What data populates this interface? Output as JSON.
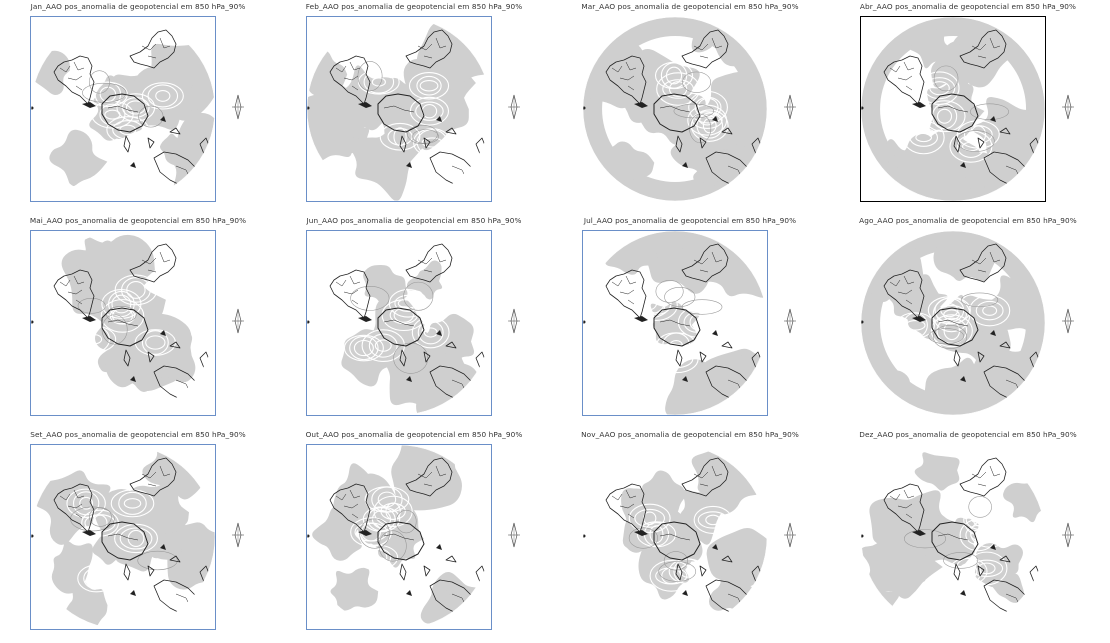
{
  "panels": [
    {
      "title": "Jan_AAO pos_anomalia de geopotencial em 850 hPa_90%"
    },
    {
      "title": "Feb_AAO pos_anomalia de geopotencial em 850 hPa_90%"
    },
    {
      "title": "Mar_AAO pos_anomalia de geopotencial em 850 hPa_90%"
    },
    {
      "title": "Abr_AAO pos_anomalia de geopotencial em 850 hPa_90%"
    },
    {
      "title": "Mai_AAO pos_anomalia de geopotencial em 850 hPa_90%"
    },
    {
      "title": "Jun_AAO pos_anomalia de geopotencial em 850 hPa_90%"
    },
    {
      "title": "Jul_AAO pos_anomalia de geopotencial em 850 hPa_90%"
    },
    {
      "title": "Ago_AAO pos_anomalia de geopotencial em 850 hPa_90%"
    },
    {
      "title": "Set_AAO pos_anomalia de geopotencial em 850 hPa_90%"
    },
    {
      "title": "Out_AAO pos_anomalia de geopotencial em 850 hPa_90%"
    },
    {
      "title": "Nov_AAO pos_anomalia de geopotencial em 850 hPa_90%"
    },
    {
      "title": "Dez_AAO pos_anomalia de geopotencial em 850 hPa_90%"
    }
  ],
  "colors": {
    "shading": "#cfcfcf",
    "coast": "#222222",
    "contour": "#ffffff",
    "frame_blue": "#6a8fc8",
    "frame_black": "#000000"
  }
}
